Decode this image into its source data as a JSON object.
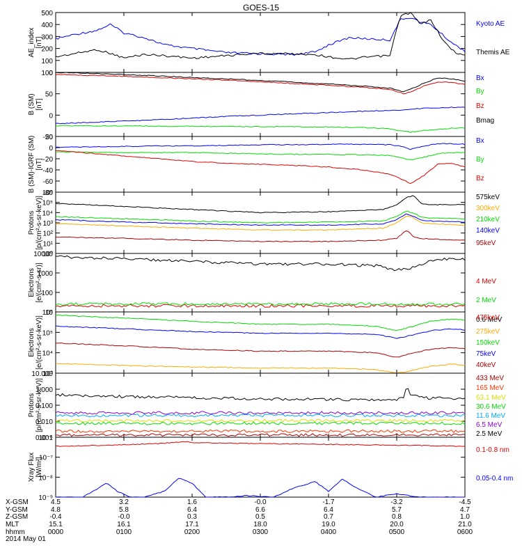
{
  "title": "GOES-15",
  "colors": {
    "black": "#000000",
    "blue": "#0000ff",
    "green": "#00dd00",
    "red": "#dd0000",
    "orange": "#ffaa00",
    "cyan": "#00aaff",
    "purple": "#8800cc",
    "yellow": "#dddd00",
    "teal": "#00ccaa",
    "darkred": "#aa0000",
    "red2": "#ff3300"
  },
  "time_axis": {
    "ticks": [
      "0000",
      "0100",
      "0200",
      "0300",
      "0400",
      "0500",
      "0600"
    ],
    "date": "2014 May 01"
  },
  "ephemeris": [
    {
      "label": "X-GSM",
      "values": [
        "4.5",
        "3.2",
        "1.6",
        "-0.0",
        "-1.7",
        "-3.2",
        "-4.5"
      ]
    },
    {
      "label": "Y-GSM",
      "values": [
        "4.8",
        "5.8",
        "6.4",
        "6.6",
        "6.4",
        "5.7",
        "4.7"
      ]
    },
    {
      "label": "Z-GSM",
      "values": [
        "-0.4",
        "-0.0",
        "0.3",
        "0.5",
        "0.7",
        "0.8",
        "1.0"
      ]
    },
    {
      "label": "MLT",
      "values": [
        "15.1",
        "16.1",
        "17.1",
        "18.0",
        "19.0",
        "20.0",
        "21.0"
      ]
    },
    {
      "label": "hhmm",
      "values": [
        "0000",
        "0100",
        "0200",
        "0300",
        "0400",
        "0500",
        "0600"
      ]
    }
  ],
  "chart_data": [
    {
      "type": "line",
      "ylabel": "AE_index\n[nT]",
      "ylim": [
        0,
        500
      ],
      "yticks": [
        "0",
        "100",
        "200",
        "300",
        "400",
        "500"
      ],
      "x": [
        0,
        0.3,
        0.6,
        0.8,
        1.0,
        1.3,
        1.6,
        2.0,
        2.5,
        3.0,
        3.5,
        3.8,
        4.0,
        4.3,
        4.6,
        4.9,
        5.05,
        5.2,
        5.35,
        5.5,
        5.7,
        5.85,
        6.0
      ],
      "series": [
        {
          "name": "Kyoto AE",
          "color": "blue",
          "values": [
            280,
            320,
            350,
            400,
            330,
            290,
            230,
            200,
            165,
            155,
            150,
            170,
            230,
            290,
            280,
            270,
            440,
            460,
            420,
            400,
            300,
            230,
            180
          ]
        },
        {
          "name": "Themis AE",
          "color": "black",
          "values": [
            130,
            160,
            190,
            160,
            120,
            150,
            140,
            120,
            140,
            160,
            155,
            150,
            130,
            110,
            130,
            140,
            470,
            500,
            400,
            440,
            250,
            170,
            140
          ]
        }
      ]
    },
    {
      "type": "line",
      "ylabel": "B (SM)\n[nT]",
      "ylim": [
        -50,
        100
      ],
      "yticks": [
        "-50",
        "0",
        "50",
        "100"
      ],
      "x": [
        0,
        0.5,
        1,
        1.5,
        2,
        2.5,
        3,
        3.5,
        4,
        4.5,
        4.9,
        5.1,
        5.2,
        5.4,
        5.6,
        5.8,
        6.0
      ],
      "series": [
        {
          "name": "Bx",
          "color": "blue",
          "values": [
            -20,
            -17,
            -14,
            -11,
            -7,
            -3,
            0,
            3,
            6,
            9,
            11,
            12,
            14,
            16,
            17,
            18,
            19
          ]
        },
        {
          "name": "By",
          "color": "green",
          "values": [
            -25,
            -25,
            -25,
            -26,
            -26,
            -27,
            -27,
            -27,
            -28,
            -29,
            -32,
            -38,
            -40,
            -36,
            -33,
            -31,
            -30
          ]
        },
        {
          "name": "Bz",
          "color": "red",
          "values": [
            95,
            93,
            91,
            88,
            85,
            82,
            78,
            74,
            70,
            65,
            60,
            50,
            54,
            68,
            78,
            76,
            72
          ]
        },
        {
          "name": "Bmag",
          "color": "black",
          "values": [
            100,
            98,
            95,
            92,
            88,
            85,
            81,
            77,
            73,
            68,
            63,
            55,
            60,
            75,
            87,
            85,
            80
          ]
        }
      ]
    },
    {
      "type": "line",
      "ylabel": "B (SM)-IGRF (SM)\n[nT]",
      "ylim": [
        -80,
        20
      ],
      "yticks": [
        "-80",
        "-60",
        "-40",
        "-20",
        "0",
        "20"
      ],
      "x": [
        0,
        0.5,
        1,
        1.5,
        2,
        2.5,
        3,
        3.5,
        4,
        4.5,
        4.9,
        5.1,
        5.2,
        5.4,
        5.6,
        5.8,
        6.0
      ],
      "series": [
        {
          "name": "Bx",
          "color": "blue",
          "values": [
            1,
            1,
            2,
            3,
            3,
            4,
            5,
            5,
            6,
            6,
            5,
            2,
            -3,
            3,
            7,
            7,
            6
          ]
        },
        {
          "name": "By",
          "color": "green",
          "values": [
            -8,
            -8,
            -9,
            -9,
            -9,
            -10,
            -11,
            -12,
            -12,
            -13,
            -14,
            -19,
            -22,
            -17,
            -11,
            -9,
            -9
          ]
        },
        {
          "name": "Bz",
          "color": "red",
          "values": [
            -5,
            -10,
            -15,
            -20,
            -25,
            -28,
            -30,
            -32,
            -35,
            -40,
            -48,
            -58,
            -65,
            -50,
            -30,
            -28,
            -35
          ]
        }
      ]
    },
    {
      "type": "line",
      "ylabel": "Protons\n[p/(cm²-s-sr-keV)]",
      "yscale": "log",
      "ylim": [
        1,
        1000000
      ],
      "yticks": [
        "10⁰",
        "10¹",
        "10²",
        "10³",
        "10⁴",
        "10⁵",
        "10⁶"
      ],
      "x": [
        0,
        1,
        2,
        3,
        4,
        4.8,
        5.0,
        5.15,
        5.25,
        5.35,
        5.5,
        6.0
      ],
      "series": [
        {
          "name": "575keV",
          "color": "black",
          "values": [
            80000,
            40000,
            20000,
            10000,
            12000,
            20000,
            60000,
            300000,
            500000,
            80000,
            60000,
            60000
          ]
        },
        {
          "name": "300keV",
          "color": "orange",
          "values": [
            800,
            500,
            300,
            200,
            200,
            300,
            1000,
            5000,
            3000,
            1000,
            800,
            600
          ]
        },
        {
          "name": "210keV",
          "color": "green",
          "values": [
            4000,
            2500,
            1500,
            1000,
            1200,
            1500,
            4000,
            15000,
            8000,
            4000,
            3000,
            2500
          ]
        },
        {
          "name": "140keV",
          "color": "blue",
          "values": [
            2000,
            1200,
            800,
            600,
            600,
            800,
            2000,
            8000,
            4000,
            2000,
            1500,
            1200
          ]
        },
        {
          "name": "95keV",
          "color": "darkred",
          "values": [
            40,
            30,
            20,
            15,
            15,
            20,
            30,
            200,
            40,
            30,
            25,
            20
          ]
        }
      ]
    },
    {
      "type": "line",
      "ylabel": "Electrons\n[e/(cm²-s-sr)]",
      "yscale": "log",
      "ylim": [
        5,
        10000
      ],
      "yticks": [
        "10",
        "100",
        "1000",
        "10000"
      ],
      "x": [
        0,
        1,
        2,
        3,
        4,
        4.7,
        5.0,
        5.2,
        5.5,
        5.8,
        6.0
      ],
      "series": [
        {
          "name": "4 MeV",
          "color": "red",
          "values": [
            11,
            11,
            11,
            11,
            11,
            11,
            11,
            11,
            11,
            11,
            11
          ]
        },
        {
          "name": "2 MeV",
          "color": "green",
          "values": [
            14,
            14,
            14,
            14,
            14,
            14,
            14,
            14,
            14,
            14,
            14
          ]
        },
        {
          "name": "0.6 MeV",
          "color": "black",
          "values": [
            6500,
            5000,
            3500,
            2500,
            2500,
            2000,
            1200,
            1500,
            3500,
            5500,
            4500
          ]
        }
      ]
    },
    {
      "type": "line",
      "ylabel": "Electrons\n[e/(cm²-s-sr-keV)]",
      "yscale": "log",
      "ylim": [
        1000,
        1000000
      ],
      "yticks": [
        "10³",
        "10⁴",
        "10⁵",
        "10⁶"
      ],
      "x": [
        0,
        1,
        2,
        3,
        4,
        4.7,
        5.0,
        5.2,
        5.5,
        5.8,
        6.0
      ],
      "series": [
        {
          "name": "475keV",
          "color": "red",
          "values": [
            600,
            500,
            400,
            350,
            350,
            300,
            200,
            250,
            400,
            500,
            450
          ]
        },
        {
          "name": "275keV",
          "color": "orange",
          "values": [
            3000,
            2400,
            2000,
            1800,
            1800,
            1500,
            1000,
            1300,
            2200,
            2800,
            2500
          ]
        },
        {
          "name": "150keV",
          "color": "green",
          "values": [
            700000,
            500000,
            350000,
            250000,
            250000,
            200000,
            120000,
            180000,
            350000,
            450000,
            400000
          ]
        },
        {
          "name": "75keV",
          "color": "blue",
          "values": [
            200000,
            150000,
            110000,
            90000,
            90000,
            80000,
            50000,
            70000,
            120000,
            150000,
            130000
          ]
        },
        {
          "name": "40keV",
          "color": "darkred",
          "values": [
            30000,
            22000,
            15000,
            12000,
            12000,
            10000,
            6000,
            9000,
            15000,
            18000,
            16000
          ]
        }
      ]
    },
    {
      "type": "line",
      "ylabel": "Protons\n[p/(cm²-s-sr-keV)]",
      "yscale": "log",
      "ylim": [
        0.001,
        100
      ],
      "yticks": [
        "0.001",
        "0.010",
        "0.100",
        "1.000",
        "10.000"
      ],
      "x": [
        0,
        1,
        2,
        3,
        4,
        5.0,
        5.1,
        5.15,
        5.2,
        5.4,
        6.0
      ],
      "series": [
        {
          "name": "433 MeV",
          "color": "darkred",
          "values": [
            0.0015,
            0.0015,
            0.0015,
            0.0015,
            0.0015,
            0.0015,
            0.0015,
            0.0015,
            0.0015,
            0.0015,
            0.0015
          ]
        },
        {
          "name": "165 MeV",
          "color": "red2",
          "values": [
            0.003,
            0.003,
            0.003,
            0.003,
            0.003,
            0.003,
            0.003,
            0.003,
            0.003,
            0.003,
            0.003
          ]
        },
        {
          "name": "63.1 MeV",
          "color": "yellow",
          "values": [
            0.02,
            0.02,
            0.02,
            0.02,
            0.02,
            0.02,
            0.02,
            0.02,
            0.02,
            0.02,
            0.02
          ]
        },
        {
          "name": "30.6 MeV",
          "color": "green",
          "values": [
            0.012,
            0.012,
            0.012,
            0.012,
            0.012,
            0.012,
            0.012,
            0.012,
            0.012,
            0.012,
            0.012
          ]
        },
        {
          "name": "11.6 MeV",
          "color": "cyan",
          "values": [
            0.05,
            0.05,
            0.05,
            0.05,
            0.05,
            0.05,
            0.05,
            0.05,
            0.05,
            0.05,
            0.05
          ]
        },
        {
          "name": "6.5 MeV",
          "color": "purple",
          "values": [
            0.08,
            0.08,
            0.08,
            0.08,
            0.08,
            0.08,
            0.08,
            0.08,
            0.08,
            0.08,
            0.08
          ]
        },
        {
          "name": "2.5 MeV",
          "color": "black",
          "values": [
            2,
            1.5,
            1.2,
            1,
            0.9,
            0.8,
            1.5,
            10,
            2,
            1.2,
            1
          ]
        }
      ]
    },
    {
      "type": "line",
      "ylabel": "Xray Flux\n[W/m²]",
      "yscale": "log",
      "ylim": [
        1e-09,
        1e-06
      ],
      "yticks": [
        "10⁻⁹",
        "10⁻⁸",
        "10⁻⁷",
        "10⁻⁶"
      ],
      "series": [
        {
          "name": "0.1-0.8 nm",
          "color": "red",
          "x": [
            0,
            0.5,
            1,
            1.5,
            1.9,
            2.1,
            2.5,
            3,
            3.5,
            4,
            4.5,
            5,
            5.5,
            6.0
          ],
          "values": [
            3.5e-07,
            3.8e-07,
            4.2e-07,
            4.8e-07,
            6e-07,
            5.2e-07,
            5e-07,
            4.8e-07,
            4.6e-07,
            4.4e-07,
            4.2e-07,
            4e-07,
            3.8e-07,
            3.5e-07
          ]
        },
        {
          "name": "0.05-0.4 nm",
          "color": "blue",
          "x": [
            0,
            0.4,
            0.6,
            0.75,
            0.9,
            1.1,
            1.3,
            1.6,
            1.8,
            2.0,
            2.2,
            2.5,
            2.8,
            3.2,
            3.5,
            3.8,
            4.0,
            4.2,
            4.4,
            4.7,
            5.0,
            5.3,
            5.6,
            6.0
          ],
          "values": [
            1e-09,
            1e-09,
            2.5e-09,
            5e-09,
            2e-09,
            1e-09,
            1e-09,
            2e-09,
            9e-09,
            5e-09,
            1e-09,
            1e-09,
            1.2e-09,
            1e-09,
            3e-09,
            6e-09,
            2e-09,
            8e-09,
            3e-09,
            1e-09,
            1.5e-09,
            1e-09,
            1e-09,
            1e-09
          ]
        }
      ]
    }
  ]
}
